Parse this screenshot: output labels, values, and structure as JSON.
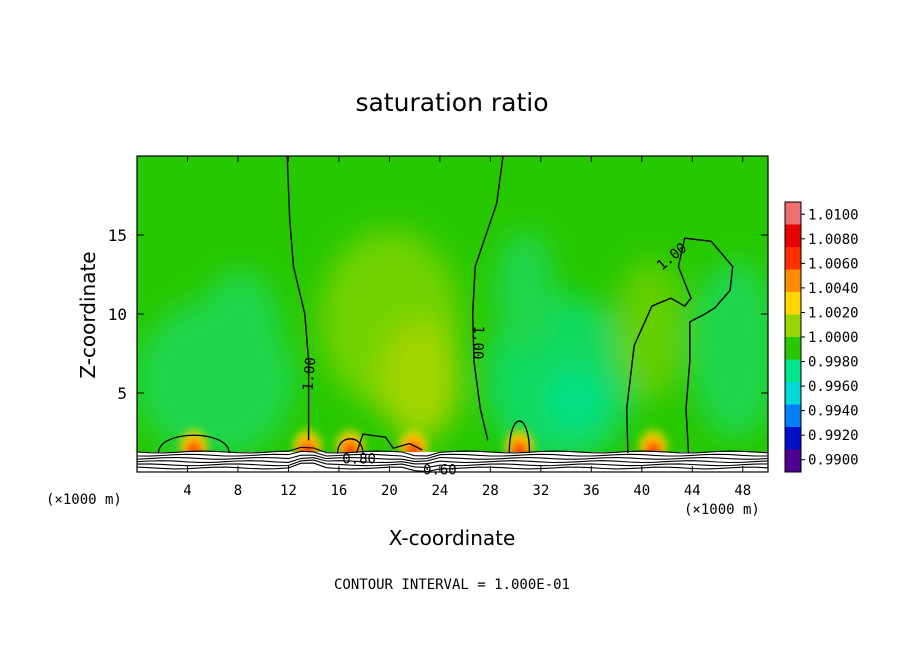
{
  "chart_data": {
    "type": "heatmap",
    "title": "saturation ratio",
    "xlabel": "X-coordinate",
    "ylabel": "Z-coordinate",
    "x_unit_left": "(×1000 m)",
    "x_unit_right": "(×1000 m)",
    "xlim": [
      0,
      50
    ],
    "ylim": [
      0,
      20
    ],
    "x_ticks": [
      4,
      8,
      12,
      16,
      20,
      24,
      28,
      32,
      36,
      40,
      44,
      48
    ],
    "y_ticks": [
      5,
      10,
      15
    ],
    "colorbar": {
      "levels": [
        "1.0100",
        "1.0080",
        "1.0060",
        "1.0040",
        "1.0020",
        "1.0000",
        "0.9980",
        "0.9960",
        "0.9940",
        "0.9920",
        "0.9900"
      ],
      "colors": [
        "#f07070",
        "#e60000",
        "#ff3000",
        "#ff8c00",
        "#ffd500",
        "#9ad400",
        "#28c800",
        "#00e48c",
        "#00d8d8",
        "#0080ff",
        "#0010c8",
        "#500090"
      ]
    },
    "contour_labels": [
      "1.00",
      "1.00",
      "1.00",
      "0.80",
      "0.60"
    ],
    "contour_lines": [
      {
        "label": "1.00",
        "points": [
          [
            11.9,
            20
          ],
          [
            12.1,
            16
          ],
          [
            12.4,
            13
          ],
          [
            13.3,
            10
          ],
          [
            13.6,
            7
          ],
          [
            13.6,
            4
          ],
          [
            13.6,
            2
          ]
        ]
      },
      {
        "label": "1.00",
        "points": [
          [
            29,
            20
          ],
          [
            28.5,
            17
          ],
          [
            26.8,
            13
          ],
          [
            26.6,
            10
          ],
          [
            26.7,
            7
          ],
          [
            27.2,
            4
          ],
          [
            27.8,
            2
          ]
        ]
      },
      {
        "label": "1.00",
        "points": [
          [
            38.9,
            1.2
          ],
          [
            38.8,
            4
          ],
          [
            39.4,
            8
          ],
          [
            40.8,
            10.5
          ],
          [
            42.3,
            11
          ],
          [
            43.4,
            10.5
          ],
          [
            43.9,
            11
          ],
          [
            42.9,
            13
          ],
          [
            43.4,
            14.8
          ],
          [
            45.5,
            14.6
          ],
          [
            47.2,
            13
          ],
          [
            47,
            11.5
          ],
          [
            45.8,
            10.4
          ],
          [
            45,
            10
          ],
          [
            43.8,
            9.5
          ],
          [
            43.8,
            7
          ],
          [
            43.5,
            4
          ],
          [
            43.7,
            1.2
          ]
        ]
      }
    ],
    "hotspots_x": [
      4.5,
      13.5,
      16.9,
      21.9,
      30.3,
      40.9
    ],
    "contour_interval_text": "CONTOUR INTERVAL = 1.000E-01"
  }
}
